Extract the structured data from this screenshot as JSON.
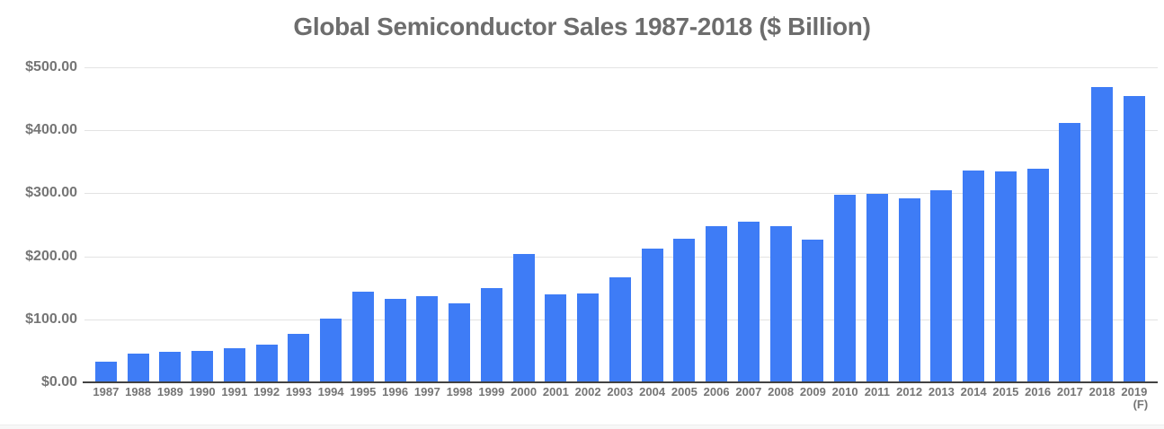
{
  "chart_data": {
    "type": "bar",
    "title": "Global Semiconductor Sales 1987-2018 ($ Billion)",
    "categories": [
      "1987",
      "1988",
      "1989",
      "1990",
      "1991",
      "1992",
      "1993",
      "1994",
      "1995",
      "1996",
      "1997",
      "1998",
      "1999",
      "2000",
      "2001",
      "2002",
      "2003",
      "2004",
      "2005",
      "2006",
      "2007",
      "2008",
      "2009",
      "2010",
      "2011",
      "2012",
      "2013",
      "2014",
      "2015",
      "2016",
      "2017",
      "2018",
      "2019"
    ],
    "last_category_sublabel": "(F)",
    "values": [
      33.1,
      45.0,
      48.8,
      50.5,
      54.6,
      59.9,
      77.3,
      101.9,
      144.4,
      132.0,
      137.2,
      125.6,
      149.4,
      204.4,
      139.0,
      140.7,
      166.4,
      213.0,
      227.5,
      247.7,
      255.6,
      248.6,
      226.3,
      298.3,
      299.5,
      291.6,
      305.6,
      335.8,
      335.2,
      338.9,
      412.2,
      468.8,
      454.0
    ],
    "xlabel": "",
    "ylabel": "",
    "ylim": [
      0,
      500
    ],
    "y_tick_values": [
      0,
      100,
      200,
      300,
      400,
      500
    ],
    "y_tick_labels": [
      "$0.00",
      "$100.00",
      "$200.00",
      "$300.00",
      "$400.00",
      "$500.00"
    ],
    "grid": "horizontal-only",
    "legend": "none",
    "colors": {
      "bar": "#3e7cf6",
      "gridline": "#e3e3e3",
      "axis_line": "#424242",
      "title_text": "#6d6d6d",
      "tick_text": "#757575",
      "background": "#ffffff",
      "bottom_strip": "#f7f7f7"
    }
  }
}
